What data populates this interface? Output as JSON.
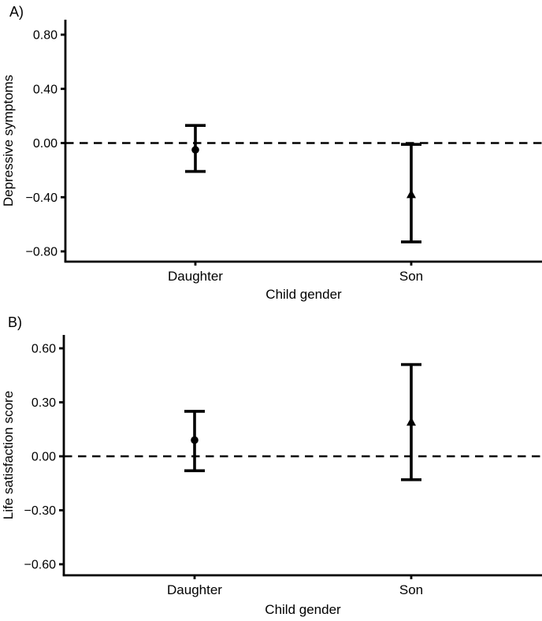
{
  "figure": {
    "background_color": "#ffffff",
    "ink_color": "#000000"
  },
  "chart_data": [
    {
      "type": "scatter",
      "subtype": "point-estimate-errorbar",
      "panel_label": "A)",
      "ylabel": "Depressive symptoms",
      "xlabel": "Child gender",
      "categories": [
        "Daughter",
        "Son"
      ],
      "yticks": [
        0.8,
        0.4,
        0.0,
        -0.4,
        -0.8
      ],
      "ytick_labels": [
        "0.80",
        "0.40",
        "0.00",
        "−0.40",
        "−0.80"
      ],
      "ylim": [
        -0.88,
        0.91
      ],
      "grid": false,
      "legend": false,
      "reference_line": {
        "y": 0,
        "style": "dashed"
      },
      "series": [
        {
          "category": "Daughter",
          "marker": "circle",
          "estimate": -0.05,
          "ci_low": -0.21,
          "ci_high": 0.13
        },
        {
          "category": "Son",
          "marker": "triangle",
          "estimate": -0.38,
          "ci_low": -0.73,
          "ci_high": -0.01
        }
      ]
    },
    {
      "type": "scatter",
      "subtype": "point-estimate-errorbar",
      "panel_label": "B)",
      "ylabel": "Life satisfaction score",
      "xlabel": "Child gender",
      "categories": [
        "Daughter",
        "Son"
      ],
      "yticks": [
        0.6,
        0.3,
        0.0,
        -0.3,
        -0.6
      ],
      "ytick_labels": [
        "0.60",
        "0.30",
        "0.00",
        "−0.30",
        "−0.60"
      ],
      "ylim": [
        -0.66,
        0.67
      ],
      "grid": false,
      "legend": false,
      "reference_line": {
        "y": 0,
        "style": "dashed"
      },
      "series": [
        {
          "category": "Daughter",
          "marker": "circle",
          "estimate": 0.09,
          "ci_low": -0.08,
          "ci_high": 0.25
        },
        {
          "category": "Son",
          "marker": "triangle",
          "estimate": 0.19,
          "ci_low": -0.13,
          "ci_high": 0.51
        }
      ]
    }
  ]
}
